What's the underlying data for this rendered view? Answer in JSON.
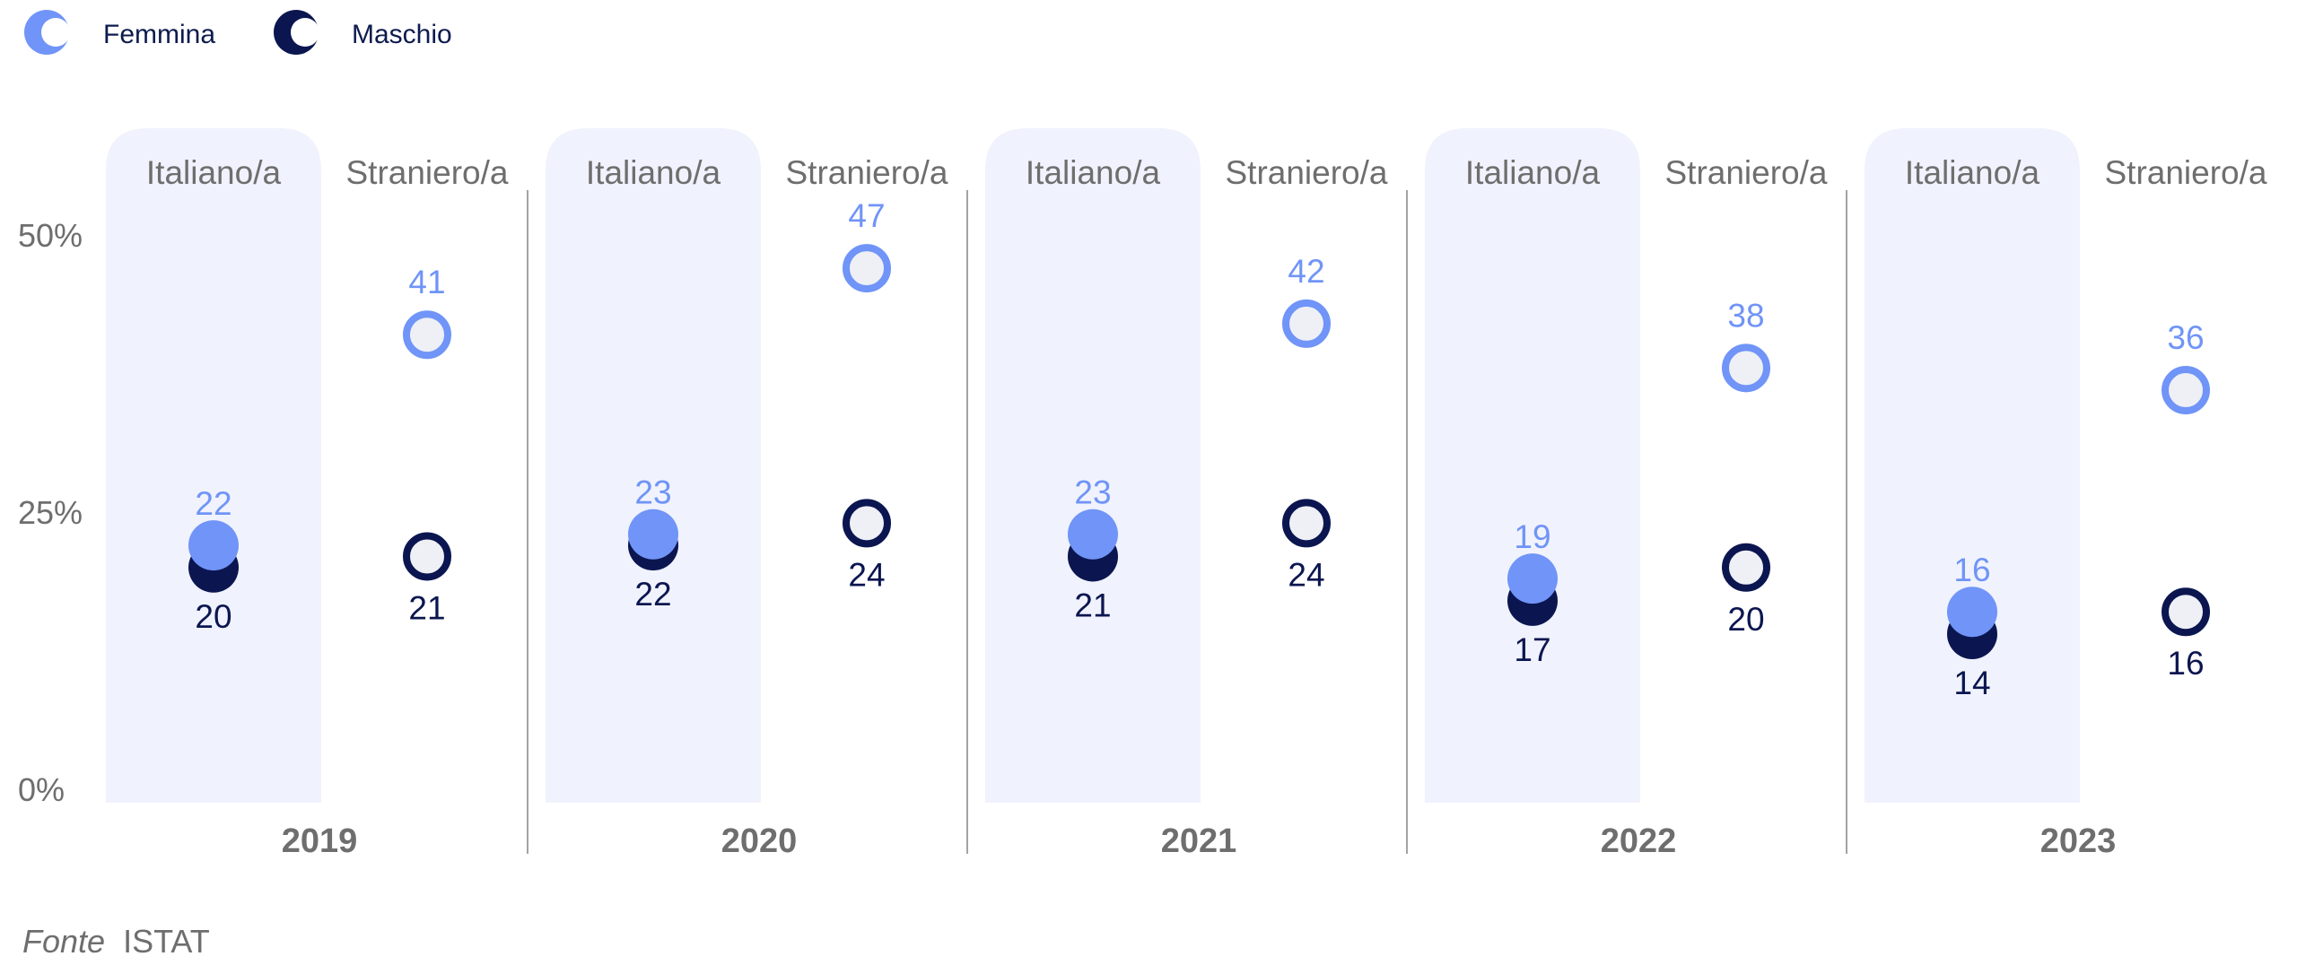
{
  "colors": {
    "femmina": "#7094f7",
    "maschio": "#0b1650",
    "band": "#f0f2fd",
    "hollow_fill": "#eef0f6",
    "separator": "#a3a3a3",
    "text_muted": "#6e6e6e"
  },
  "legend": [
    {
      "name": "Femmina",
      "color": "#7094f7"
    },
    {
      "name": "Maschio",
      "color": "#0b1650"
    }
  ],
  "source": {
    "prefix": "Fonte",
    "name": "ISTAT"
  },
  "chart_data": {
    "type": "scatter",
    "title": "",
    "xlabel": "",
    "ylabel": "",
    "ylim": [
      0,
      50
    ],
    "y_ticks": [
      "0%",
      "25%",
      "50%"
    ],
    "years": [
      "2019",
      "2020",
      "2021",
      "2022",
      "2023"
    ],
    "categories": [
      "Italiano/a",
      "Straniero/a"
    ],
    "marker_style": {
      "Italiano/a": "filled",
      "Straniero/a": "hollow"
    },
    "series": [
      {
        "name": "Femmina",
        "values": {
          "2019": {
            "Italiano/a": 22,
            "Straniero/a": 41
          },
          "2020": {
            "Italiano/a": 23,
            "Straniero/a": 47
          },
          "2021": {
            "Italiano/a": 23,
            "Straniero/a": 42
          },
          "2022": {
            "Italiano/a": 19,
            "Straniero/a": 38
          },
          "2023": {
            "Italiano/a": 16,
            "Straniero/a": 36
          }
        }
      },
      {
        "name": "Maschio",
        "values": {
          "2019": {
            "Italiano/a": 20,
            "Straniero/a": 21
          },
          "2020": {
            "Italiano/a": 22,
            "Straniero/a": 24
          },
          "2021": {
            "Italiano/a": 21,
            "Straniero/a": 24
          },
          "2022": {
            "Italiano/a": 17,
            "Straniero/a": 20
          },
          "2023": {
            "Italiano/a": 14,
            "Straniero/a": 16
          }
        }
      }
    ]
  }
}
